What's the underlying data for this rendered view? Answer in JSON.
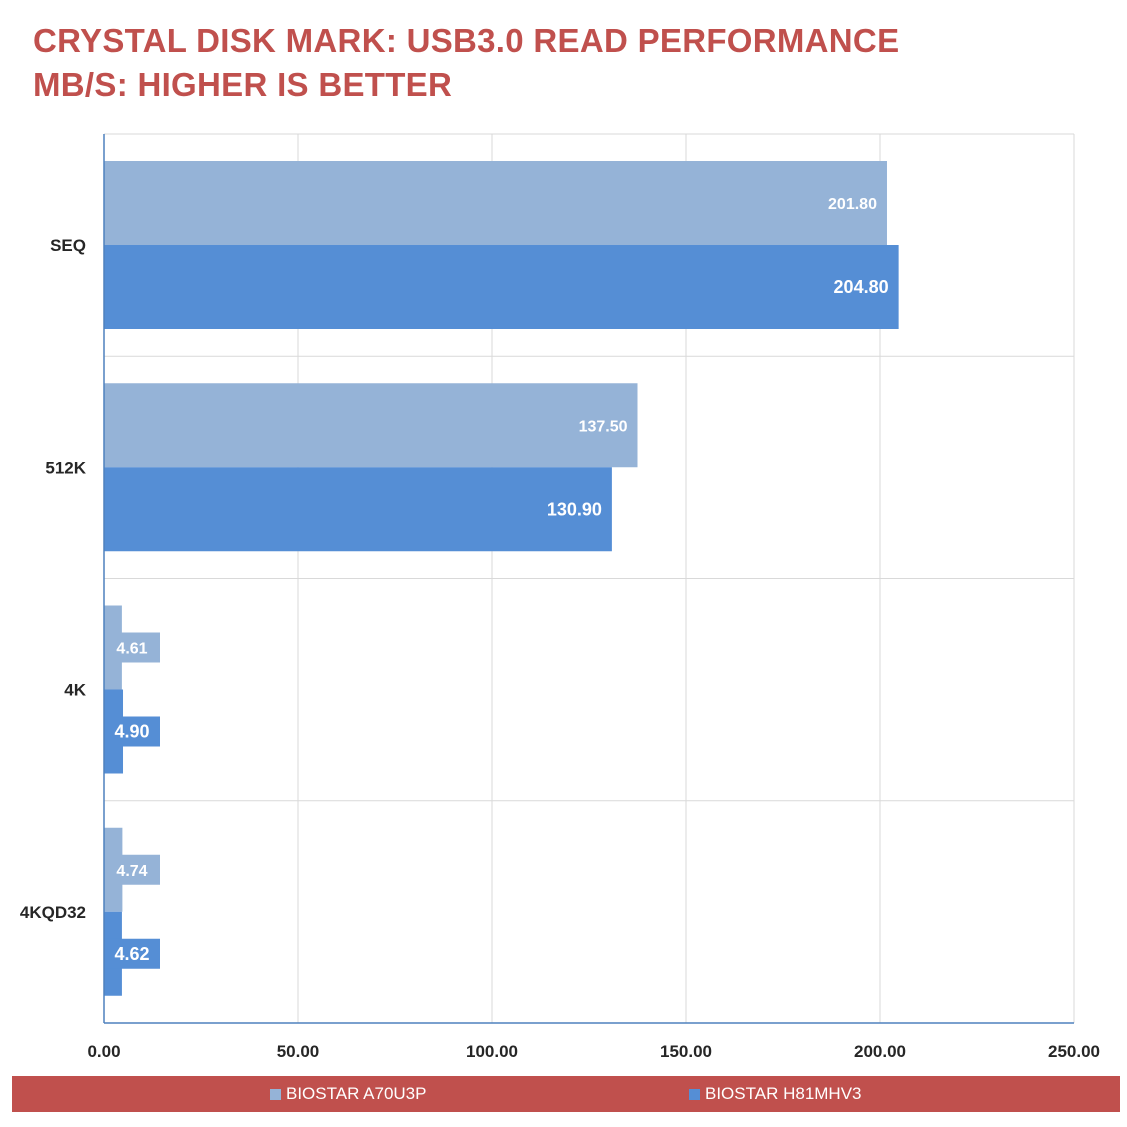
{
  "chart_data": {
    "type": "bar",
    "orientation": "horizontal",
    "title": "CRYSTAL DISK MARK: USB3.0 READ PERFORMANCE",
    "subtitle": "MB/S: HIGHER IS BETTER",
    "categories": [
      "SEQ",
      "512K",
      "4K",
      "4KQD32"
    ],
    "series": [
      {
        "name": "BIOSTAR A70U3P",
        "values": [
          201.8,
          137.5,
          4.61,
          4.74
        ],
        "labels": [
          "201.80",
          "137.50",
          "4.61",
          "4.74"
        ],
        "color": "#95b3d7"
      },
      {
        "name": "BIOSTAR H81MHV3",
        "values": [
          204.8,
          130.9,
          4.9,
          4.62
        ],
        "labels": [
          "204.80",
          "130.90",
          "4.90",
          "4.62"
        ],
        "color": "#558ed5"
      }
    ],
    "xlim": [
      0,
      250
    ],
    "xticks": [
      0,
      50,
      100,
      150,
      200,
      250
    ],
    "xtick_labels": [
      "0.00",
      "50.00",
      "100.00",
      "150.00",
      "200.00",
      "250.00"
    ],
    "grid": true,
    "legend_position": "bottom",
    "colors": {
      "title": "#c0504d",
      "legend_background": "#c0504d",
      "gridline": "#d9d9d9",
      "axis": "#4f81bd"
    }
  }
}
